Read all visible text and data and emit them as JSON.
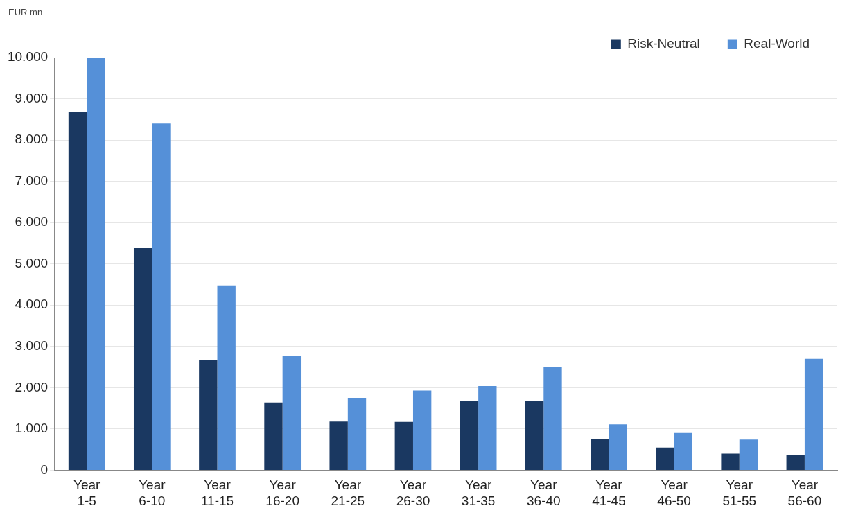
{
  "chart_data": {
    "type": "bar",
    "ylabel": "EUR mn",
    "categories": [
      "Year 1-5",
      "Year 6-10",
      "Year 11-15",
      "Year 16-20",
      "Year 21-25",
      "Year 26-30",
      "Year 31-35",
      "Year 36-40",
      "Year 41-45",
      "Year 46-50",
      "Year 51-55",
      "Year 56-60"
    ],
    "series": [
      {
        "name": "Risk-Neutral",
        "color": "#1a3861",
        "values": [
          8680,
          5380,
          2660,
          1640,
          1180,
          1170,
          1670,
          1670,
          760,
          550,
          400,
          360
        ]
      },
      {
        "name": "Real-World",
        "color": "#5590d8",
        "values": [
          10000,
          8400,
          4480,
          2760,
          1750,
          1930,
          2040,
          2510,
          1110,
          900,
          740,
          2700
        ]
      }
    ],
    "ylim": [
      0,
      10000
    ],
    "yticks": [
      {
        "value": 0,
        "label": "0"
      },
      {
        "value": 1000,
        "label": "1.000"
      },
      {
        "value": 2000,
        "label": "2.000"
      },
      {
        "value": 3000,
        "label": "3.000"
      },
      {
        "value": 4000,
        "label": "4.000"
      },
      {
        "value": 5000,
        "label": "5.000"
      },
      {
        "value": 6000,
        "label": "6.000"
      },
      {
        "value": 7000,
        "label": "7.000"
      },
      {
        "value": 8000,
        "label": "8.000"
      },
      {
        "value": 9000,
        "label": "9.000"
      },
      {
        "value": 10000,
        "label": "10.000"
      }
    ],
    "grid": "y",
    "legend": "top right"
  }
}
